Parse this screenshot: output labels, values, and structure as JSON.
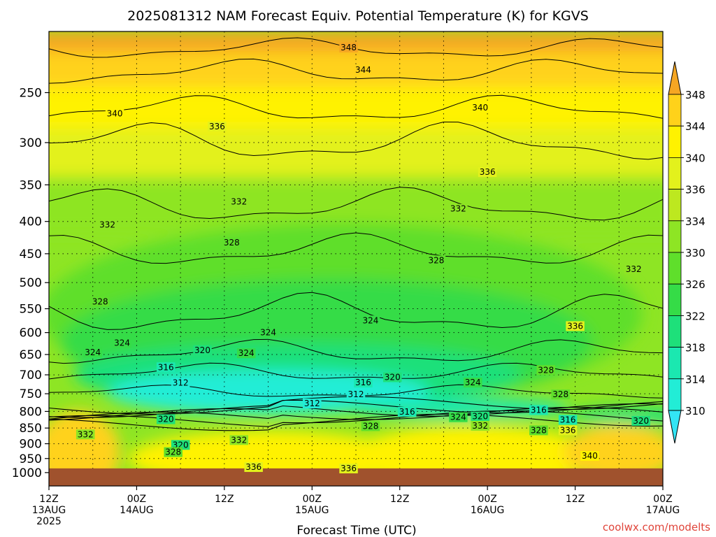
{
  "chart_data": {
    "type": "heatmap",
    "title": "2025081312 NAM Forecast Equiv. Potential Temperature (K) for KGVS",
    "xlabel": "Forecast Time (UTC)",
    "ylabel": "",
    "y_scale": "log",
    "ylim": [
      1050,
      200
    ],
    "y_ticks": [
      250,
      300,
      350,
      400,
      450,
      500,
      550,
      600,
      650,
      700,
      750,
      800,
      850,
      900,
      950,
      1000
    ],
    "x_ticks": [
      {
        "line1": "12Z",
        "line2": "13AUG",
        "line3": "2025"
      },
      {
        "line1": "00Z",
        "line2": "14AUG",
        "line3": ""
      },
      {
        "line1": "12Z",
        "line2": "",
        "line3": ""
      },
      {
        "line1": "00Z",
        "line2": "15AUG",
        "line3": ""
      },
      {
        "line1": "12Z",
        "line2": "",
        "line3": ""
      },
      {
        "line1": "00Z",
        "line2": "16AUG",
        "line3": ""
      },
      {
        "line1": "12Z",
        "line2": "",
        "line3": ""
      },
      {
        "line1": "00Z",
        "line2": "17AUG",
        "line3": ""
      }
    ],
    "x_range_hours": [
      0,
      84
    ],
    "colorbar": {
      "levels": [
        310,
        314,
        318,
        322,
        326,
        330,
        334,
        336,
        340,
        344,
        348
      ],
      "labels": [
        "348",
        "344",
        "340",
        "336",
        "334",
        "330",
        "326",
        "322",
        "318",
        "314",
        "310"
      ],
      "colors": [
        "#33e5f5",
        "#22edd6",
        "#1be8b0",
        "#1ee07a",
        "#35dc47",
        "#5fdf2b",
        "#8ee524",
        "#bde81f",
        "#e3f11c",
        "#fff200",
        "#ffd21a",
        "#f5a623"
      ]
    },
    "ground_color": "#a0522d",
    "contour_labels": [
      {
        "text": "348",
        "t": 41,
        "p": 212
      },
      {
        "text": "344",
        "t": 43,
        "p": 230
      },
      {
        "text": "340",
        "t": 9,
        "p": 270
      },
      {
        "text": "336",
        "t": 23,
        "p": 283
      },
      {
        "text": "340",
        "t": 59,
        "p": 264
      },
      {
        "text": "336",
        "t": 60,
        "p": 334
      },
      {
        "text": "332",
        "t": 26,
        "p": 372
      },
      {
        "text": "332",
        "t": 56,
        "p": 382
      },
      {
        "text": "332",
        "t": 8,
        "p": 405
      },
      {
        "text": "332",
        "t": 80,
        "p": 476
      },
      {
        "text": "328",
        "t": 25,
        "p": 432
      },
      {
        "text": "328",
        "t": 53,
        "p": 461
      },
      {
        "text": "328",
        "t": 7,
        "p": 536
      },
      {
        "text": "324",
        "t": 44,
        "p": 574
      },
      {
        "text": "324",
        "t": 30,
        "p": 600
      },
      {
        "text": "336",
        "t": 72,
        "p": 586
      },
      {
        "text": "324",
        "t": 10,
        "p": 623
      },
      {
        "text": "324",
        "t": 6,
        "p": 645
      },
      {
        "text": "320",
        "t": 21,
        "p": 640
      },
      {
        "text": "324",
        "t": 27,
        "p": 647
      },
      {
        "text": "316",
        "t": 16,
        "p": 681
      },
      {
        "text": "320",
        "t": 47,
        "p": 706
      },
      {
        "text": "316",
        "t": 43,
        "p": 720
      },
      {
        "text": "324",
        "t": 58,
        "p": 720
      },
      {
        "text": "328",
        "t": 68,
        "p": 688
      },
      {
        "text": "312",
        "t": 18,
        "p": 721
      },
      {
        "text": "312",
        "t": 42,
        "p": 752
      },
      {
        "text": "312",
        "t": 36,
        "p": 777
      },
      {
        "text": "328",
        "t": 70,
        "p": 752
      },
      {
        "text": "316",
        "t": 67,
        "p": 796
      },
      {
        "text": "316",
        "t": 49,
        "p": 801
      },
      {
        "text": "324",
        "t": 56,
        "p": 817
      },
      {
        "text": "320",
        "t": 59,
        "p": 815
      },
      {
        "text": "316",
        "t": 71,
        "p": 825
      },
      {
        "text": "320",
        "t": 81,
        "p": 828
      },
      {
        "text": "320",
        "t": 16,
        "p": 823
      },
      {
        "text": "328",
        "t": 44,
        "p": 844
      },
      {
        "text": "332",
        "t": 59,
        "p": 843
      },
      {
        "text": "328",
        "t": 67,
        "p": 857
      },
      {
        "text": "336",
        "t": 71,
        "p": 857
      },
      {
        "text": "332",
        "t": 5,
        "p": 870
      },
      {
        "text": "332",
        "t": 26,
        "p": 888
      },
      {
        "text": "320",
        "t": 18,
        "p": 904
      },
      {
        "text": "328",
        "t": 17,
        "p": 928
      },
      {
        "text": "340",
        "t": 74,
        "p": 941
      },
      {
        "text": "336",
        "t": 28,
        "p": 980
      },
      {
        "text": "336",
        "t": 41,
        "p": 985
      }
    ],
    "credit": "coolwx.com/modelts"
  }
}
